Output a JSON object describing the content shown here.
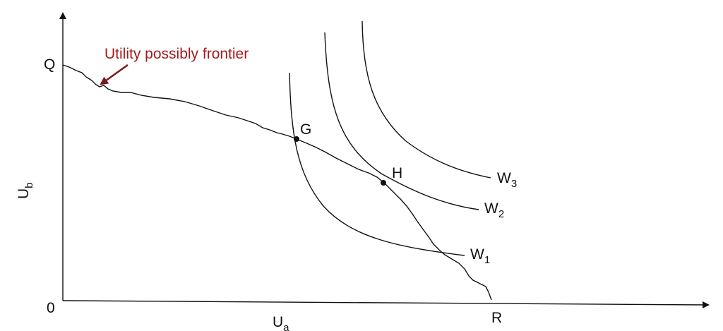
{
  "diagram": {
    "annotation": "Utility possibly frontier",
    "colors": {
      "annotation": "#a51c1c",
      "ink": "#111111",
      "background": "#ffffff"
    },
    "axes": {
      "origin": "0",
      "x_axis_label": "U",
      "x_axis_sub": "a",
      "y_axis_label": "U",
      "y_axis_sub": "b"
    },
    "frontier_endpoints": {
      "top": "Q",
      "bottom": "R"
    },
    "points": [
      {
        "id": "G",
        "label": "G"
      },
      {
        "id": "H",
        "label": "H"
      }
    ],
    "indifference_curves": [
      {
        "id": "W1",
        "label": "W",
        "sub": "1"
      },
      {
        "id": "W2",
        "label": "W",
        "sub": "2"
      },
      {
        "id": "W3",
        "label": "W",
        "sub": "3"
      }
    ]
  }
}
